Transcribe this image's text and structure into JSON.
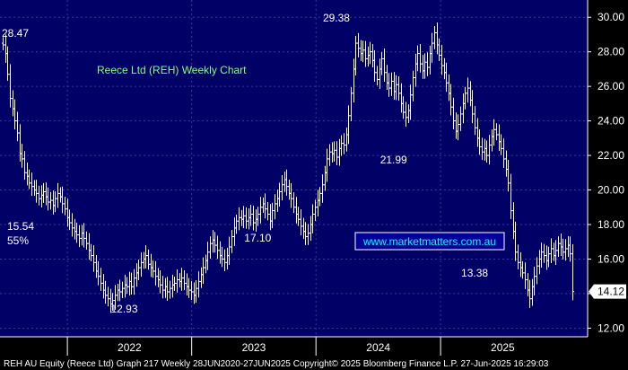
{
  "chart_data": {
    "type": "ohlc",
    "title": "Reece Ltd (REH) Weekly Chart",
    "watermark": "www.marketmatters.com.au",
    "footer": "REH AU Equity (Reece Ltd) Graph 217  Weekly 28JUN2020-27JUN2025  Copyright© 2025 Bloomberg Finance L.P.  27-Jun-2025 16:29:03",
    "ylim": [
      11.5,
      31.0
    ],
    "y_ticks": [
      12.0,
      14.0,
      16.0,
      18.0,
      20.0,
      22.0,
      24.0,
      26.0,
      28.0,
      30.0
    ],
    "y_tick_labels": [
      "12.00",
      "14.00",
      "16.00",
      "18.00",
      "20.00",
      "22.00",
      "24.00",
      "26.00",
      "28.00",
      "30.00"
    ],
    "x_labels": [
      "2022",
      "2023",
      "2024",
      "2025"
    ],
    "last_price": 14.12,
    "last_price_label": "14.12",
    "annotations": [
      {
        "text": "28.47",
        "date": "2021-06-25",
        "value": 28.47,
        "color": "#ffffff"
      },
      {
        "text": "12.93",
        "date": "2022-06-17",
        "value": 12.93,
        "color": "#ffffff"
      },
      {
        "text": "17.10",
        "date": "2023-07-14",
        "value": 17.1,
        "color": "#ffffff"
      },
      {
        "text": "29.38",
        "date": "2024-03-01",
        "value": 29.38,
        "color": "#ffffff"
      },
      {
        "text": "21.99",
        "date": "2024-08-16",
        "value": 21.99,
        "color": "#ffffff"
      },
      {
        "text": "13.38",
        "date": "2025-04-11",
        "value": 13.38,
        "color": "#ffffff"
      },
      {
        "text": "15.54",
        "value": 15.54,
        "color": "#e8d800"
      },
      {
        "text": "55%",
        "color": "#e8d800"
      }
    ],
    "series": [
      {
        "start_date": "2021-06-25",
        "freq": "weekly",
        "close": [
          28.4,
          27.9,
          26.7,
          25.3,
          24.7,
          24.0,
          23.3,
          22.1,
          21.8,
          21.0,
          20.8,
          20.4,
          20.2,
          20.0,
          19.8,
          19.5,
          19.7,
          19.9,
          19.6,
          19.3,
          19.4,
          19.1,
          19.5,
          19.8,
          19.6,
          19.2,
          18.9,
          18.4,
          18.1,
          17.8,
          17.6,
          17.4,
          17.2,
          17.5,
          17.2,
          16.9,
          16.5,
          16.2,
          15.8,
          15.3,
          15.0,
          14.6,
          14.2,
          13.9,
          13.7,
          13.4,
          13.6,
          13.9,
          14.2,
          14.1,
          14.3,
          14.5,
          14.4,
          14.7,
          14.4,
          14.9,
          15.2,
          15.5,
          15.8,
          16.0,
          16.2,
          15.7,
          15.5,
          15.3,
          15.0,
          14.8,
          14.5,
          14.2,
          14.4,
          14.1,
          14.3,
          14.5,
          14.6,
          14.8,
          14.7,
          14.9,
          14.6,
          14.4,
          14.2,
          14.1,
          13.9,
          14.3,
          14.7,
          15.1,
          15.5,
          15.9,
          16.4,
          16.9,
          17.1,
          16.8,
          16.5,
          16.2,
          16.0,
          15.8,
          16.2,
          16.7,
          17.3,
          17.8,
          18.2,
          18.4,
          18.3,
          18.5,
          18.2,
          18.4,
          18.6,
          18.1,
          18.3,
          18.6,
          19.0,
          19.2,
          18.9,
          18.6,
          18.2,
          18.8,
          19.2,
          19.5,
          19.9,
          20.3,
          20.6,
          20.2,
          19.8,
          19.5,
          19.0,
          18.6,
          18.3,
          17.9,
          17.6,
          17.3,
          17.5,
          18.0,
          18.6,
          19.0,
          19.4,
          19.8,
          20.3,
          21.0,
          21.8,
          22.2,
          22.1,
          22.3,
          21.9,
          22.4,
          22.7,
          22.6,
          23.2,
          24.3,
          25.6,
          27.0,
          28.5,
          28.2,
          27.9,
          28.1,
          27.6,
          27.8,
          28.0,
          27.5,
          26.8,
          26.4,
          27.0,
          27.6,
          26.8,
          26.2,
          25.9,
          26.3,
          25.7,
          26.1,
          25.6,
          25.0,
          24.5,
          24.2,
          24.6,
          25.5,
          26.5,
          27.3,
          27.9,
          27.3,
          26.9,
          27.4,
          27.1,
          27.9,
          28.5,
          29.1,
          28.4,
          27.8,
          27.2,
          26.8,
          26.2,
          25.6,
          24.8,
          24.0,
          23.4,
          23.8,
          24.4,
          25.0,
          25.6,
          25.9,
          25.2,
          24.4,
          23.6,
          23.0,
          22.5,
          22.2,
          22.4,
          22.0,
          22.6,
          23.1,
          23.5,
          23.2,
          22.8,
          22.4,
          21.8,
          21.2,
          20.4,
          18.8,
          17.6,
          16.4,
          15.8,
          15.5,
          15.2,
          14.8,
          14.2,
          13.7,
          14.4,
          15.0,
          15.6,
          16.0,
          16.4,
          16.2,
          15.9,
          16.3,
          16.6,
          16.2,
          16.5,
          16.9,
          16.7,
          16.4,
          16.6,
          16.8,
          16.3,
          14.12
        ]
      }
    ]
  }
}
